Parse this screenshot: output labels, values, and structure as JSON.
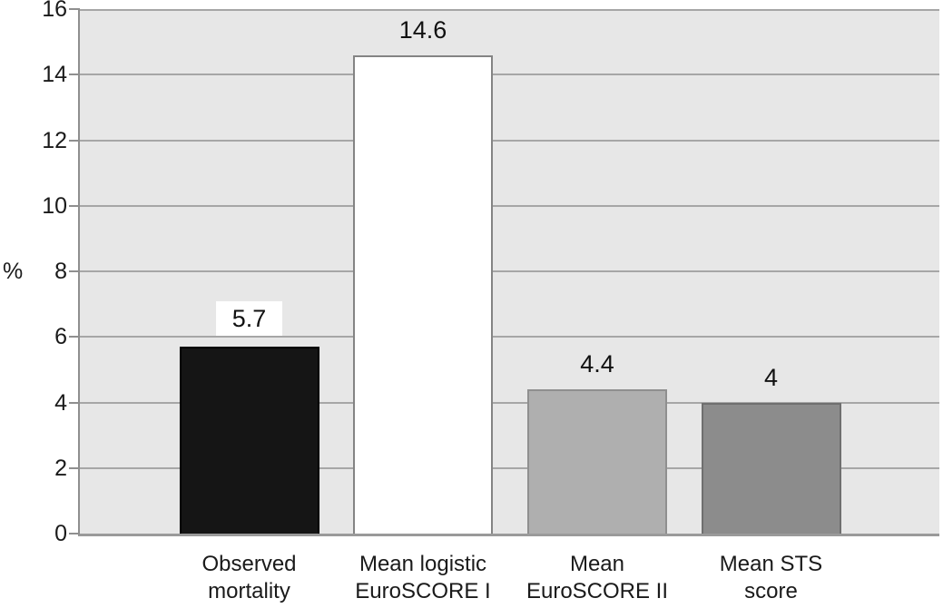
{
  "chart_data": {
    "type": "bar",
    "title": "",
    "xlabel": "",
    "ylabel": "%",
    "ylim": [
      0,
      16
    ],
    "ytick_step": 2,
    "yticks": [
      0,
      2,
      4,
      6,
      8,
      10,
      12,
      14,
      16
    ],
    "grid": true,
    "legend": "none",
    "categories": [
      "Observed mortality",
      "Mean logistic EuroSCORE I",
      "Mean EuroSCORE II",
      "Mean STS score"
    ],
    "values": [
      5.7,
      14.6,
      4.4,
      4
    ],
    "bars": [
      {
        "category_lines": [
          "Observed",
          "mortality"
        ],
        "value": 5.7,
        "value_label": "5.7",
        "label_boxed": true,
        "fill": "#151515",
        "border": "#000000"
      },
      {
        "category_lines": [
          "Mean logistic",
          "EuroSCORE I"
        ],
        "value": 14.6,
        "value_label": "14.6",
        "label_boxed": false,
        "fill": "#ffffff",
        "border": "#848484"
      },
      {
        "category_lines": [
          "Mean",
          "EuroSCORE II"
        ],
        "value": 4.4,
        "value_label": "4.4",
        "label_boxed": false,
        "fill": "#afafaf",
        "border": "#8f8f8f"
      },
      {
        "category_lines": [
          "Mean STS",
          "score"
        ],
        "value": 4,
        "value_label": "4",
        "label_boxed": false,
        "fill": "#8c8c8c",
        "border": "#6f6f6f"
      }
    ],
    "colors": {
      "plot_background": "#e7e7e7",
      "gridline": "#a6a6a6",
      "axis": "#8f8f8f",
      "text": "#1a1a1a",
      "page_background": "#ffffff",
      "value_label_box_background": "#ffffff"
    }
  }
}
